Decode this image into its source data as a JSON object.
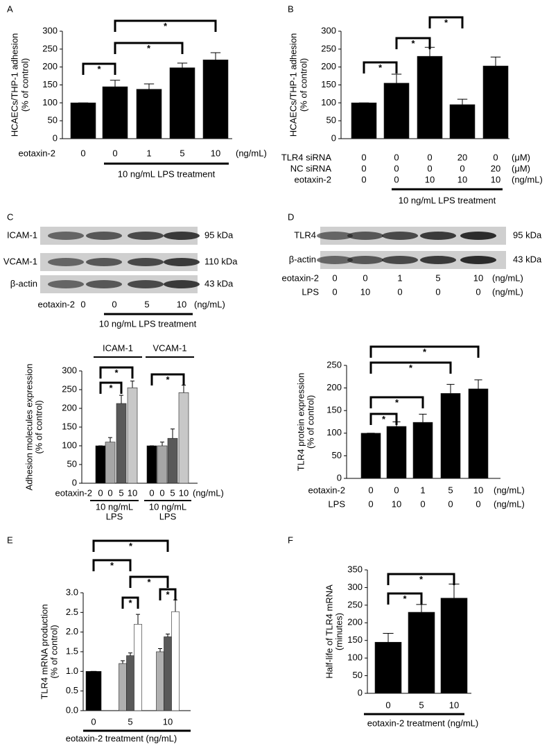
{
  "panel_labels": [
    "A",
    "B",
    "C",
    "D",
    "E",
    "F"
  ],
  "blots": [
    {
      "bands": [
        {
          "label": "ICAM-1",
          "size": "95 kDa"
        },
        {
          "label": "VCAM-1",
          "size": "110 kDa"
        },
        {
          "label": "β-actin",
          "size": "43 kDa"
        }
      ],
      "rows": [
        {
          "label": "eotaxin-2",
          "values": [
            "0",
            "0",
            "5",
            "10"
          ],
          "unit": "(ng/mL)"
        }
      ],
      "treatment": "10 ng/mL LPS treatment"
    },
    {
      "bands": [
        {
          "label": "TLR4",
          "size": "95 kDa"
        },
        {
          "label": "β-actin",
          "size": "43 kDa"
        }
      ],
      "rows": [
        {
          "label": "eotaxin-2",
          "values": [
            "0",
            "0",
            "1",
            "5",
            "10"
          ],
          "unit": "(ng/mL)"
        },
        {
          "label": "LPS",
          "values": [
            "0",
            "10",
            "0",
            "0",
            "0"
          ],
          "unit": "(ng/mL)"
        }
      ]
    }
  ],
  "chart_data": [
    {
      "type": "bar",
      "ylabel": [
        "HCAECs/THP-1 adhesion",
        "(% of control)"
      ],
      "ylim": [
        0,
        300
      ],
      "yticks": [
        0,
        50,
        100,
        150,
        200,
        250,
        300
      ],
      "color": "#000000",
      "values": [
        100,
        145,
        138,
        198,
        220
      ],
      "errors": [
        0,
        18,
        15,
        13,
        20
      ],
      "rows": [
        {
          "label": "eotaxin-2",
          "values": [
            "0",
            "0",
            "1",
            "5",
            "10"
          ],
          "unit": "(ng/mL)"
        }
      ],
      "treatment": "10 ng/mL LPS treatment",
      "annotations": [
        "*",
        "*",
        "*"
      ]
    },
    {
      "type": "bar",
      "ylabel": [
        "HCAECs/THP-1 adhesion",
        "(% of control)"
      ],
      "ylim": [
        0,
        300
      ],
      "yticks": [
        0,
        50,
        100,
        150,
        200,
        250,
        300
      ],
      "color": "#000000",
      "values": [
        100,
        155,
        230,
        95,
        203
      ],
      "errors": [
        0,
        25,
        25,
        15,
        25
      ],
      "rows": [
        {
          "label": "TLR4 siRNA",
          "values": [
            "0",
            "0",
            "0",
            "20",
            "0"
          ],
          "unit": "(μM)"
        },
        {
          "label": "NC siRNA",
          "values": [
            "0",
            "0",
            "0",
            "0",
            "20"
          ],
          "unit": "(μM)"
        },
        {
          "label": "eotaxin-2",
          "values": [
            "0",
            "0",
            "10",
            "10",
            "10"
          ],
          "unit": "(ng/mL)"
        }
      ],
      "treatment": "10 ng/mL LPS treatment",
      "annotations": [
        "*",
        "*",
        "*"
      ]
    },
    {
      "type": "bar",
      "ylabel": [
        "Adhesion molecules expression",
        "(% of control)"
      ],
      "ylim": [
        0,
        300
      ],
      "yticks": [
        0,
        50,
        100,
        150,
        200,
        250,
        300
      ],
      "categories": [
        "ICAM-1",
        "VCAM-1"
      ],
      "series": [
        {
          "color": "#000000",
          "values": [
            100,
            100
          ],
          "errors": [
            0,
            0
          ]
        },
        {
          "color": "#a6a6a6",
          "values": [
            110,
            100
          ],
          "errors": [
            12,
            10
          ]
        },
        {
          "color": "#595959",
          "values": [
            213,
            120
          ],
          "errors": [
            22,
            25
          ]
        },
        {
          "color": "#c8c8c8",
          "values": [
            255,
            242
          ],
          "errors": [
            18,
            20
          ]
        }
      ],
      "rows": [
        {
          "label": "eotaxin-2",
          "values": [
            "0",
            "0",
            "5",
            "10",
            "0",
            "0",
            "5",
            "10"
          ],
          "unit": "(ng/mL)"
        }
      ],
      "group_notes": [
        [
          "10 ng/mL",
          "LPS"
        ],
        [
          "10 ng/mL",
          "LPS"
        ]
      ],
      "annotations": [
        "*",
        "*",
        "*"
      ]
    },
    {
      "type": "bar",
      "ylabel": [
        "TLR4 protein expression",
        "(% of control)"
      ],
      "ylim": [
        0,
        250
      ],
      "yticks": [
        0,
        50,
        100,
        150,
        200,
        250
      ],
      "color": "#000000",
      "values": [
        100,
        115,
        124,
        188,
        198
      ],
      "errors": [
        0,
        10,
        18,
        20,
        20
      ],
      "rows": [
        {
          "label": "eotaxin-2",
          "values": [
            "0",
            "0",
            "1",
            "5",
            "10"
          ],
          "unit": "(ng/mL)"
        },
        {
          "label": "LPS",
          "values": [
            "0",
            "10",
            "0",
            "0",
            "0"
          ],
          "unit": "(ng/mL)"
        }
      ],
      "annotations": [
        "*",
        "*",
        "*",
        "*"
      ]
    },
    {
      "type": "bar",
      "ylabel": [
        "TLR4 mRNA production",
        "(% of control)"
      ],
      "ylim": [
        0,
        3
      ],
      "yticks": [
        {
          "value": 0,
          "label": "0.0"
        },
        {
          "value": 0.5,
          "label": "0.5"
        },
        {
          "value": 1,
          "label": "1.0"
        },
        {
          "value": 1.5,
          "label": "1.5"
        },
        {
          "value": 2,
          "label": "2.0"
        },
        {
          "value": 2.5,
          "label": "2.5"
        },
        {
          "value": 3,
          "label": "3.0"
        }
      ],
      "categories": [
        "0",
        "5",
        "10"
      ],
      "series": [
        {
          "color": "#000000",
          "values": [
            1.0,
            null,
            null
          ],
          "errors": [
            0,
            null,
            null
          ]
        },
        {
          "color": "#b0b0b0",
          "values": [
            null,
            1.2,
            1.5
          ],
          "errors": [
            null,
            0.07,
            0.08
          ]
        },
        {
          "color": "#595959",
          "values": [
            null,
            1.4,
            1.88
          ],
          "errors": [
            null,
            0.07,
            0.07
          ]
        },
        {
          "color": "#ffffff",
          "values": [
            null,
            2.2,
            2.52
          ],
          "errors": [
            null,
            0.25,
            0.3
          ]
        }
      ],
      "xlabel": "eotaxin-2 treatment (ng/mL)",
      "annotations": [
        "*",
        "*",
        "*",
        "*",
        "*"
      ]
    },
    {
      "type": "bar",
      "ylabel": [
        "Half-life of TLR4 mRNA",
        "(minutes)"
      ],
      "ylim": [
        0,
        350
      ],
      "yticks": [
        0,
        50,
        100,
        150,
        200,
        250,
        300,
        350
      ],
      "color": "#000000",
      "values": [
        145,
        230,
        270
      ],
      "errors": [
        25,
        22,
        40
      ],
      "categories": [
        "0",
        "5",
        "10"
      ],
      "xlabel": "eotaxin-2 treatment (ng/mL)",
      "annotations": [
        "*",
        "*"
      ]
    }
  ]
}
